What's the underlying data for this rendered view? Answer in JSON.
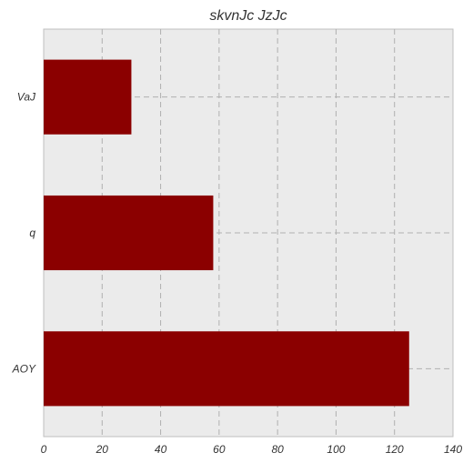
{
  "chart_data": {
    "type": "bar",
    "orientation": "horizontal",
    "title": "skvnJc JzJc",
    "xlabel": "",
    "ylabel": "",
    "categories": [
      "VaJ",
      "q",
      "AOY"
    ],
    "values": [
      30,
      58,
      125
    ],
    "xlim": [
      0,
      140
    ],
    "xticks": [
      0,
      20,
      40,
      60,
      80,
      100,
      120,
      140
    ],
    "grid": true,
    "grid_style": "dashed",
    "bar_color": "#8b0000",
    "background_color": "#ebebeb"
  }
}
